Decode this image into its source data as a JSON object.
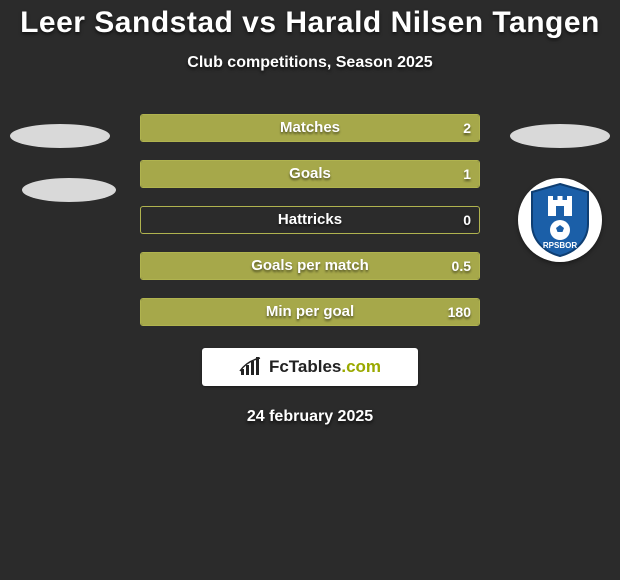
{
  "title": "Leer Sandstad vs Harald Nilsen Tangen",
  "subtitle": "Club competitions, Season 2025",
  "bar_style": {
    "border_color": "#b0b34f",
    "fill_color": "#a6a84a",
    "height": 28
  },
  "rows": [
    {
      "label": "Matches",
      "left": "",
      "right": "2",
      "left_pct": 0,
      "right_pct": 100
    },
    {
      "label": "Goals",
      "left": "",
      "right": "1",
      "left_pct": 0,
      "right_pct": 100
    },
    {
      "label": "Hattricks",
      "left": "",
      "right": "0",
      "left_pct": 0,
      "right_pct": 0
    },
    {
      "label": "Goals per match",
      "left": "",
      "right": "0.5",
      "left_pct": 0,
      "right_pct": 100
    },
    {
      "label": "Min per goal",
      "left": "",
      "right": "180",
      "left_pct": 0,
      "right_pct": 100
    }
  ],
  "club": {
    "name": "Sarpsborg 08",
    "text_visible": "RPSBOR",
    "shield_color": "#1b5fa8",
    "shield_outline": "#0e3e72"
  },
  "brand": {
    "text_a": "FcTables",
    "text_b": ".com",
    "icon_color": "#222222"
  },
  "date": "24 february 2025",
  "background": "#2b2b2b"
}
